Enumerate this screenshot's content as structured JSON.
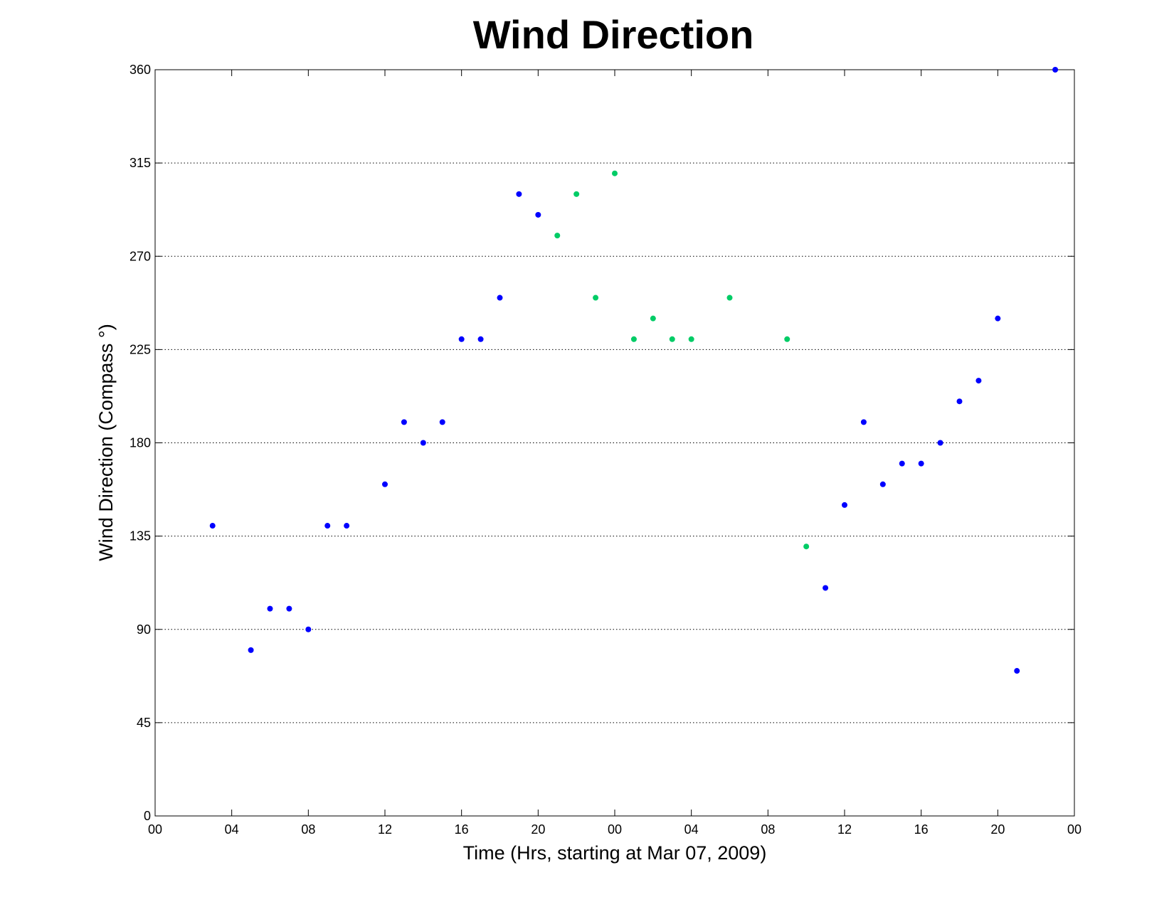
{
  "chart_data": {
    "type": "scatter",
    "title": "Wind Direction",
    "xlabel": "Time (Hrs, starting at Mar 07, 2009)",
    "ylabel": "Wind Direction (Compass  °)",
    "xlim": [
      0,
      48
    ],
    "ylim": [
      0,
      360
    ],
    "xticks": [
      0,
      4,
      8,
      12,
      16,
      20,
      24,
      28,
      32,
      36,
      40,
      44,
      48
    ],
    "xtick_labels": [
      "00",
      "04",
      "08",
      "12",
      "16",
      "20",
      "00",
      "04",
      "08",
      "12",
      "16",
      "20",
      "00"
    ],
    "yticks": [
      0,
      45,
      90,
      135,
      180,
      225,
      270,
      315,
      360
    ],
    "ytick_labels": [
      "0",
      "45",
      "90",
      "135",
      "180",
      "225",
      "270",
      "315",
      "360"
    ],
    "grid": "y-dotted",
    "colors": {
      "blue": "#0000ff",
      "green": "#00cc66"
    },
    "series": [
      {
        "color": "#0000ff",
        "x": [
          3,
          5,
          6,
          7,
          8,
          9,
          10,
          12,
          13,
          14,
          15,
          16,
          17,
          18,
          19,
          20,
          35,
          36,
          37,
          38,
          39,
          40,
          41,
          42,
          43,
          44,
          45,
          47
        ],
        "y": [
          140,
          80,
          100,
          100,
          90,
          140,
          140,
          160,
          190,
          180,
          190,
          230,
          230,
          250,
          300,
          290,
          110,
          150,
          190,
          160,
          170,
          170,
          180,
          200,
          210,
          240,
          70,
          360
        ]
      },
      {
        "color": "#00cc66",
        "x": [
          21,
          22,
          23,
          24,
          25,
          26,
          27,
          28,
          30,
          33,
          34
        ],
        "y": [
          280,
          300,
          250,
          310,
          230,
          240,
          230,
          230,
          250,
          230,
          130
        ]
      }
    ]
  }
}
